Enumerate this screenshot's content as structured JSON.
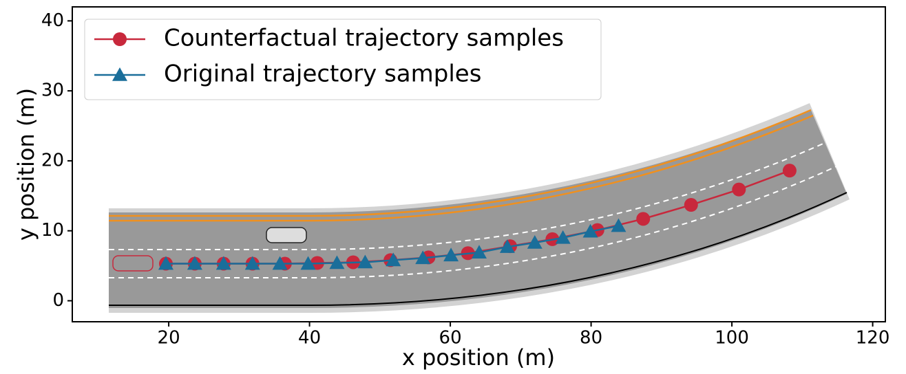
{
  "chart_data": {
    "type": "line",
    "xlabel": "x position (m)",
    "ylabel": "y position (m)",
    "xlim": [
      6.3,
      121.8
    ],
    "ylim": [
      -3,
      42
    ],
    "xticks": [
      20,
      40,
      60,
      80,
      100,
      120
    ],
    "yticks": [
      0,
      10,
      20,
      30,
      40
    ],
    "legend": "upper left",
    "series": [
      {
        "name": "Counterfactual trajectory samples",
        "color": "#c8283c",
        "marker": "circle",
        "x": [
          19.6,
          23.7,
          27.8,
          31.9,
          36.5,
          41.1,
          46.2,
          51.5,
          56.9,
          62.5,
          68.5,
          74.5,
          80.9,
          87.4,
          94.2,
          101.0,
          108.2
        ],
        "values": [
          5.3,
          5.3,
          5.3,
          5.3,
          5.3,
          5.4,
          5.5,
          5.8,
          6.2,
          6.8,
          7.8,
          8.8,
          10.1,
          11.7,
          13.7,
          15.9,
          18.6
        ]
      },
      {
        "name": "Original trajectory samples",
        "color": "#1a6e9a",
        "marker": "triangle",
        "x": [
          19.6,
          23.7,
          27.8,
          31.9,
          35.8,
          39.8,
          43.9,
          47.9,
          51.9,
          56.1,
          60.1,
          64.1,
          68.1,
          72.0,
          76.0,
          79.9,
          83.9
        ],
        "values": [
          5.3,
          5.3,
          5.3,
          5.3,
          5.3,
          5.3,
          5.4,
          5.5,
          5.8,
          6.1,
          6.5,
          6.9,
          7.7,
          8.3,
          9.0,
          9.9,
          10.7
        ]
      }
    ]
  }
}
